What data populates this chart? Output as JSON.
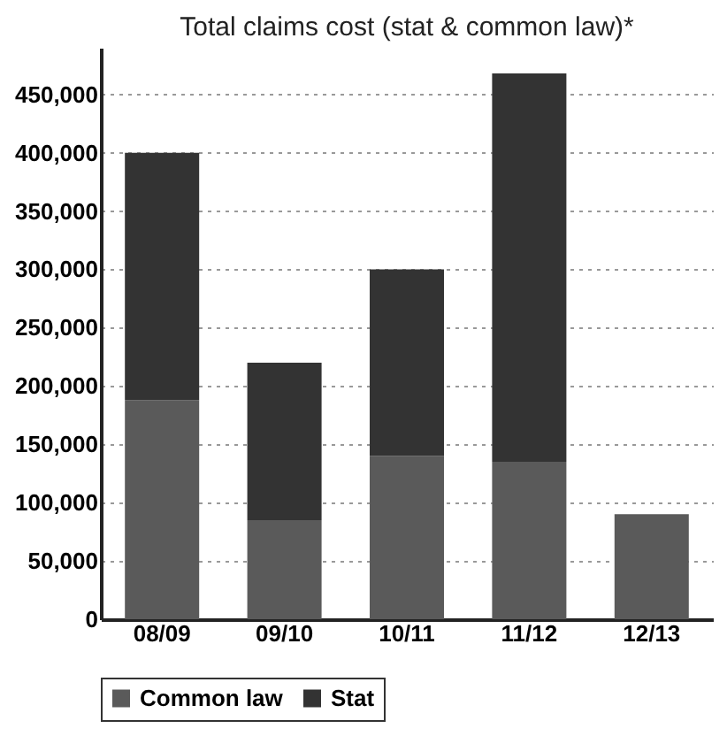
{
  "chart_data": {
    "type": "bar",
    "title": "Total claims cost (stat & common law)*",
    "stacked": true,
    "categories": [
      "08/09",
      "09/10",
      "10/11",
      "11/12",
      "12/13"
    ],
    "series": [
      {
        "name": "Common law",
        "color": "#5a5a5a",
        "values": [
          188000,
          85000,
          140000,
          135000,
          90000
        ]
      },
      {
        "name": "Stat",
        "color": "#333333",
        "values": [
          212000,
          135000,
          160000,
          333000,
          0
        ]
      }
    ],
    "ylim": [
      0,
      490000
    ],
    "yticks": [
      0,
      {
        "value": 50000,
        "label": "50,000"
      },
      {
        "value": 100000,
        "label": "100,000"
      },
      {
        "value": 150000,
        "label": "150,000"
      },
      {
        "value": 200000,
        "label": "200,000"
      },
      {
        "value": 250000,
        "label": "250,000"
      },
      {
        "value": 300000,
        "label": "300,000"
      },
      {
        "value": 350000,
        "label": "350,000"
      },
      {
        "value": 400000,
        "label": "400,000"
      },
      {
        "value": 450000,
        "label": "450,000"
      }
    ],
    "grid": "y",
    "legend": "bottom"
  }
}
